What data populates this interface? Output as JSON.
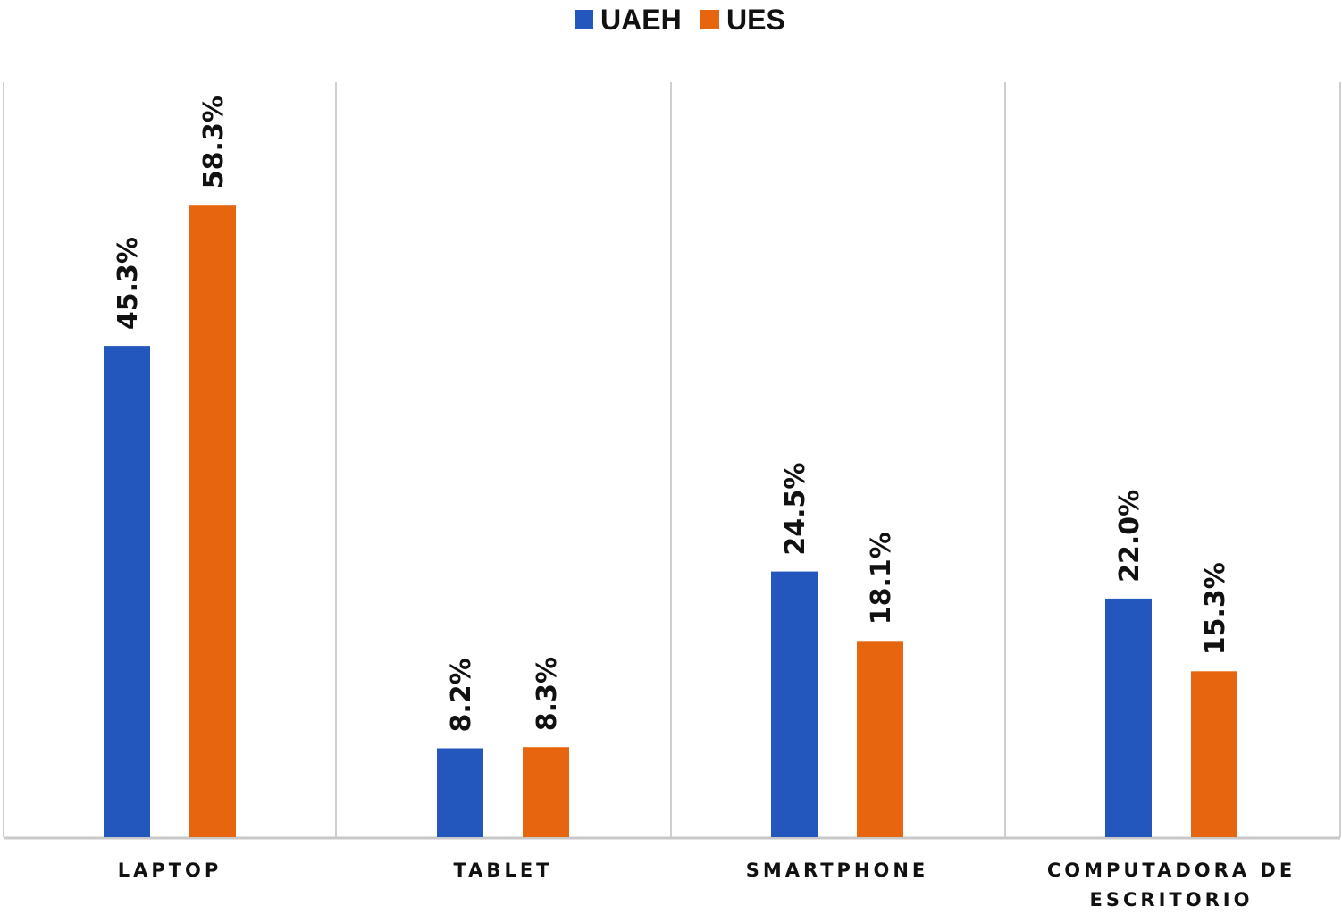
{
  "chart_data": {
    "type": "bar",
    "categories": [
      "LAPTOP",
      "TABLET",
      "SMARTPHONE",
      "COMPUTADORA DE ESCRITORIO"
    ],
    "category_lines": [
      [
        "LAPTOP"
      ],
      [
        "TABLET"
      ],
      [
        "SMARTPHONE"
      ],
      [
        "COMPUTADORA DE",
        "ESCRITORIO"
      ]
    ],
    "series": [
      {
        "name": "UAEH",
        "values": [
          45.3,
          8.2,
          24.5,
          22.0
        ],
        "labels": [
          "45.3%",
          "8.2%",
          "24.5%",
          "22.0%"
        ],
        "color": "#2457be"
      },
      {
        "name": "UES",
        "values": [
          58.3,
          8.3,
          18.1,
          15.3
        ],
        "labels": [
          "58.3%",
          "8.3%",
          "18.1%",
          "15.3%"
        ],
        "color": "#e8650f"
      }
    ],
    "ylim": [
      0,
      65
    ],
    "grid": false,
    "category_separators": true,
    "legend_position": "top-center",
    "title": "",
    "xlabel": "",
    "ylabel": ""
  }
}
